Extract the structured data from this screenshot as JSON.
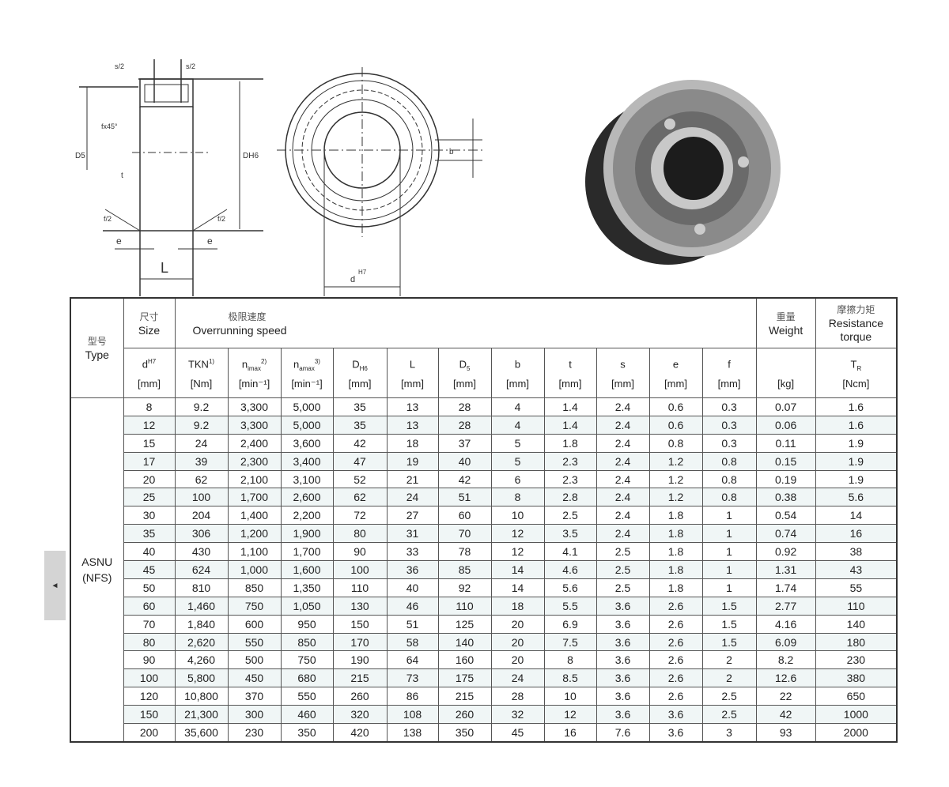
{
  "drawing": {
    "labels": {
      "s_half_left": "s/2",
      "s_half_right": "s/2",
      "chamfer": "fx45°",
      "d5": "D5",
      "t": "t",
      "dh6": "DH6",
      "f_left": "f/2",
      "f_right": "f/2",
      "e_left": "e",
      "e_right": "e",
      "L": "L",
      "b": "b",
      "d": "d",
      "d_sup": "H7"
    }
  },
  "nav": {
    "prev_icon": "◄"
  },
  "table": {
    "header": {
      "type_cn": "型号",
      "type": "Type",
      "size_cn": "尺寸",
      "size": "Size",
      "speed_cn": "极限速度",
      "speed": "Overrunning speed",
      "weight_cn": "重量",
      "weight": "Weight",
      "torque_cn": "摩擦力矩",
      "torque": "Resistance torque"
    },
    "columns": [
      {
        "sym": "d",
        "sub": "",
        "sup": "H7",
        "unit": "[mm]"
      },
      {
        "sym": "TKN",
        "sub": "",
        "sup": "1)",
        "unit": "[Nm]"
      },
      {
        "sym": "n",
        "sub": "imax",
        "sup": "2)",
        "unit": "[min⁻¹]"
      },
      {
        "sym": "n",
        "sub": "amax",
        "sup": "3)",
        "unit": "[min⁻¹]"
      },
      {
        "sym": "D",
        "sub": "H6",
        "sup": "",
        "unit": "[mm]"
      },
      {
        "sym": "L",
        "sub": "",
        "sup": "",
        "unit": "[mm]"
      },
      {
        "sym": "D",
        "sub": "5",
        "sup": "",
        "unit": "[mm]"
      },
      {
        "sym": "b",
        "sub": "",
        "sup": "",
        "unit": "[mm]"
      },
      {
        "sym": "t",
        "sub": "",
        "sup": "",
        "unit": "[mm]"
      },
      {
        "sym": "s",
        "sub": "",
        "sup": "",
        "unit": "[mm]"
      },
      {
        "sym": "e",
        "sub": "",
        "sup": "",
        "unit": "[mm]"
      },
      {
        "sym": "f",
        "sub": "",
        "sup": "",
        "unit": "[mm]"
      },
      {
        "sym": "",
        "sub": "",
        "sup": "",
        "unit": "[kg]"
      },
      {
        "sym": "T",
        "sub": "R",
        "sup": "",
        "unit": "[Ncm]"
      }
    ],
    "type_value": "ASNU (NFS)",
    "rows": [
      [
        "8",
        "9.2",
        "3,300",
        "5,000",
        "35",
        "13",
        "28",
        "4",
        "1.4",
        "2.4",
        "0.6",
        "0.3",
        "0.07",
        "1.6"
      ],
      [
        "12",
        "9.2",
        "3,300",
        "5,000",
        "35",
        "13",
        "28",
        "4",
        "1.4",
        "2.4",
        "0.6",
        "0.3",
        "0.06",
        "1.6"
      ],
      [
        "15",
        "24",
        "2,400",
        "3,600",
        "42",
        "18",
        "37",
        "5",
        "1.8",
        "2.4",
        "0.8",
        "0.3",
        "0.11",
        "1.9"
      ],
      [
        "17",
        "39",
        "2,300",
        "3,400",
        "47",
        "19",
        "40",
        "5",
        "2.3",
        "2.4",
        "1.2",
        "0.8",
        "0.15",
        "1.9"
      ],
      [
        "20",
        "62",
        "2,100",
        "3,100",
        "52",
        "21",
        "42",
        "6",
        "2.3",
        "2.4",
        "1.2",
        "0.8",
        "0.19",
        "1.9"
      ],
      [
        "25",
        "100",
        "1,700",
        "2,600",
        "62",
        "24",
        "51",
        "8",
        "2.8",
        "2.4",
        "1.2",
        "0.8",
        "0.38",
        "5.6"
      ],
      [
        "30",
        "204",
        "1,400",
        "2,200",
        "72",
        "27",
        "60",
        "10",
        "2.5",
        "2.4",
        "1.8",
        "1",
        "0.54",
        "14"
      ],
      [
        "35",
        "306",
        "1,200",
        "1,900",
        "80",
        "31",
        "70",
        "12",
        "3.5",
        "2.4",
        "1.8",
        "1",
        "0.74",
        "16"
      ],
      [
        "40",
        "430",
        "1,100",
        "1,700",
        "90",
        "33",
        "78",
        "12",
        "4.1",
        "2.5",
        "1.8",
        "1",
        "0.92",
        "38"
      ],
      [
        "45",
        "624",
        "1,000",
        "1,600",
        "100",
        "36",
        "85",
        "14",
        "4.6",
        "2.5",
        "1.8",
        "1",
        "1.31",
        "43"
      ],
      [
        "50",
        "810",
        "850",
        "1,350",
        "110",
        "40",
        "92",
        "14",
        "5.6",
        "2.5",
        "1.8",
        "1",
        "1.74",
        "55"
      ],
      [
        "60",
        "1,460",
        "750",
        "1,050",
        "130",
        "46",
        "110",
        "18",
        "5.5",
        "3.6",
        "2.6",
        "1.5",
        "2.77",
        "110"
      ],
      [
        "70",
        "1,840",
        "600",
        "950",
        "150",
        "51",
        "125",
        "20",
        "6.9",
        "3.6",
        "2.6",
        "1.5",
        "4.16",
        "140"
      ],
      [
        "80",
        "2,620",
        "550",
        "850",
        "170",
        "58",
        "140",
        "20",
        "7.5",
        "3.6",
        "2.6",
        "1.5",
        "6.09",
        "180"
      ],
      [
        "90",
        "4,260",
        "500",
        "750",
        "190",
        "64",
        "160",
        "20",
        "8",
        "3.6",
        "2.6",
        "2",
        "8.2",
        "230"
      ],
      [
        "100",
        "5,800",
        "450",
        "680",
        "215",
        "73",
        "175",
        "24",
        "8.5",
        "3.6",
        "2.6",
        "2",
        "12.6",
        "380"
      ],
      [
        "120",
        "10,800",
        "370",
        "550",
        "260",
        "86",
        "215",
        "28",
        "10",
        "3.6",
        "2.6",
        "2.5",
        "22",
        "650"
      ],
      [
        "150",
        "21,300",
        "300",
        "460",
        "320",
        "108",
        "260",
        "32",
        "12",
        "3.6",
        "3.6",
        "2.5",
        "42",
        "1000"
      ],
      [
        "200",
        "35,600",
        "230",
        "350",
        "420",
        "138",
        "350",
        "45",
        "16",
        "7.6",
        "3.6",
        "3",
        "93",
        "2000"
      ]
    ]
  }
}
